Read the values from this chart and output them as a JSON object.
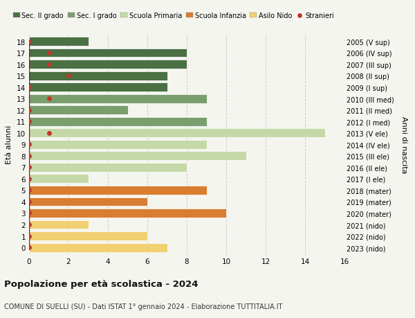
{
  "ages": [
    18,
    17,
    16,
    15,
    14,
    13,
    12,
    11,
    10,
    9,
    8,
    7,
    6,
    5,
    4,
    3,
    2,
    1,
    0
  ],
  "right_labels": [
    "2005 (V sup)",
    "2006 (IV sup)",
    "2007 (III sup)",
    "2008 (II sup)",
    "2009 (I sup)",
    "2010 (III med)",
    "2011 (II med)",
    "2012 (I med)",
    "2013 (V ele)",
    "2014 (IV ele)",
    "2015 (III ele)",
    "2016 (II ele)",
    "2017 (I ele)",
    "2018 (mater)",
    "2019 (mater)",
    "2020 (mater)",
    "2021 (nido)",
    "2022 (nido)",
    "2023 (nido)"
  ],
  "bar_values": [
    3,
    8,
    8,
    7,
    7,
    9,
    5,
    9,
    15,
    9,
    11,
    8,
    3,
    9,
    6,
    10,
    3,
    6,
    7
  ],
  "bar_colors": [
    "#4a7043",
    "#4a7043",
    "#4a7043",
    "#4a7043",
    "#4a7043",
    "#7a9e6e",
    "#7a9e6e",
    "#7a9e6e",
    "#c5d9a8",
    "#c5d9a8",
    "#c5d9a8",
    "#c5d9a8",
    "#c5d9a8",
    "#d97d30",
    "#d97d30",
    "#d97d30",
    "#f0d070",
    "#f0d070",
    "#f0d070"
  ],
  "stranieri_vals": [
    0,
    1,
    1,
    2,
    0,
    1,
    0,
    0,
    1,
    0,
    0,
    0,
    0,
    0,
    0,
    0,
    0,
    0,
    0
  ],
  "legend_labels": [
    "Sec. II grado",
    "Sec. I grado",
    "Scuola Primaria",
    "Scuola Infanzia",
    "Asilo Nido",
    "Stranieri"
  ],
  "legend_colors": [
    "#4a7043",
    "#7a9e6e",
    "#c5d9a8",
    "#d97d30",
    "#f0d070",
    "#c0392b"
  ],
  "ylabel_left": "Età alunni",
  "ylabel_right": "Anni di nascita",
  "xlim": [
    0,
    16
  ],
  "title": "Popolazione per età scolastica - 2024",
  "subtitle": "COMUNE DI SUELLI (SU) - Dati ISTAT 1° gennaio 2024 - Elaborazione TUTTITALIA.IT",
  "bg_color": "#f5f5f0",
  "grid_color": "#cccccc"
}
